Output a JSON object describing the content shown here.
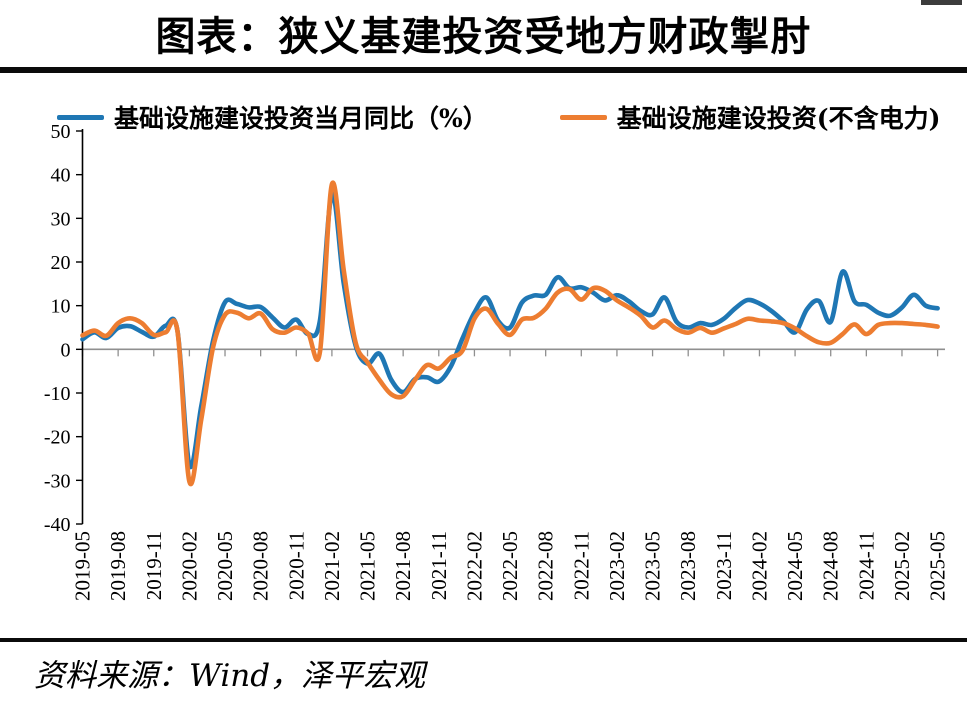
{
  "title": "图表：狭义基建投资受地方财政掣肘",
  "source": "资料来源：Wind，泽平宏观",
  "legend": [
    {
      "label": "基础设施建设投资当月同比（%）",
      "color": "#1F77B4"
    },
    {
      "label": "基础设施建设投资(不含电力)",
      "color": "#ED7D31"
    }
  ],
  "chart_data": {
    "type": "line",
    "title": "图表：狭义基建投资受地方财政掣肘",
    "xlabel": "",
    "ylabel": "",
    "ylim": [
      -40,
      50
    ],
    "y_ticks": [
      50,
      40,
      30,
      20,
      10,
      0,
      -10,
      -20,
      -30,
      -40
    ],
    "grid": false,
    "legend_position": "top",
    "x_monthly_range": "2019-05 to 2025-05, one point per month",
    "x_tick_labels": [
      "2019-05",
      "2019-08",
      "2019-11",
      "2020-02",
      "2020-05",
      "2020-08",
      "2020-11",
      "2021-02",
      "2021-05",
      "2021-08",
      "2021-11",
      "2022-02",
      "2022-05",
      "2022-08",
      "2022-11",
      "2023-02",
      "2023-05",
      "2023-08",
      "2023-11",
      "2024-02",
      "2024-05",
      "2024-08",
      "2024-11",
      "2025-02",
      "2025-05"
    ],
    "axis_colors": {
      "y_axis": "#000000",
      "x_axis": "#8F8F8F"
    },
    "series": [
      {
        "name": "基础设施建设投资当月同比（%）",
        "color": "#1F77B4",
        "values": [
          2.3,
          3.9,
          2.6,
          4.9,
          5.3,
          4.0,
          2.9,
          5.4,
          4.2,
          -26.5,
          -13.0,
          2.0,
          10.8,
          10.4,
          9.6,
          9.7,
          7.3,
          5.0,
          6.8,
          3.5,
          6.7,
          35.5,
          15.0,
          0.8,
          -3.3,
          -1.0,
          -7.0,
          -9.8,
          -6.8,
          -6.4,
          -7.4,
          -4.0,
          2.5,
          8.4,
          11.9,
          6.5,
          5.0,
          10.7,
          12.3,
          12.5,
          16.5,
          14.0,
          14.2,
          13.0,
          11.2,
          12.4,
          11.0,
          8.8,
          8.0,
          11.9,
          6.4,
          5.0,
          6.0,
          5.6,
          7.0,
          9.5,
          11.3,
          10.5,
          8.8,
          6.5,
          3.9,
          9.2,
          11.1,
          6.3,
          17.8,
          11.0,
          10.2,
          8.4,
          7.7,
          9.6,
          12.5,
          10.0,
          9.4
        ]
      },
      {
        "name": "基础设施建设投资(不含电力)",
        "color": "#ED7D31",
        "values": [
          3.2,
          4.3,
          3.1,
          6.0,
          7.1,
          6.0,
          3.3,
          3.9,
          4.1,
          -30.3,
          -16.0,
          0.5,
          7.9,
          8.4,
          7.1,
          8.2,
          4.6,
          3.8,
          5.0,
          3.6,
          -0.5,
          37.8,
          18.0,
          1.5,
          -3.0,
          -7.0,
          -10.3,
          -10.7,
          -7.0,
          -3.6,
          -4.4,
          -1.9,
          -0.3,
          7.0,
          9.3,
          5.8,
          3.3,
          6.8,
          7.2,
          9.3,
          13.0,
          13.8,
          11.4,
          14.0,
          13.4,
          11.2,
          9.6,
          7.7,
          5.0,
          6.6,
          4.7,
          3.8,
          4.9,
          3.8,
          4.8,
          5.8,
          7.0,
          6.6,
          6.4,
          6.0,
          4.8,
          3.0,
          1.6,
          1.5,
          3.5,
          5.7,
          3.5,
          5.6,
          6.0,
          6.0,
          5.8,
          5.6,
          5.2
        ]
      }
    ]
  }
}
